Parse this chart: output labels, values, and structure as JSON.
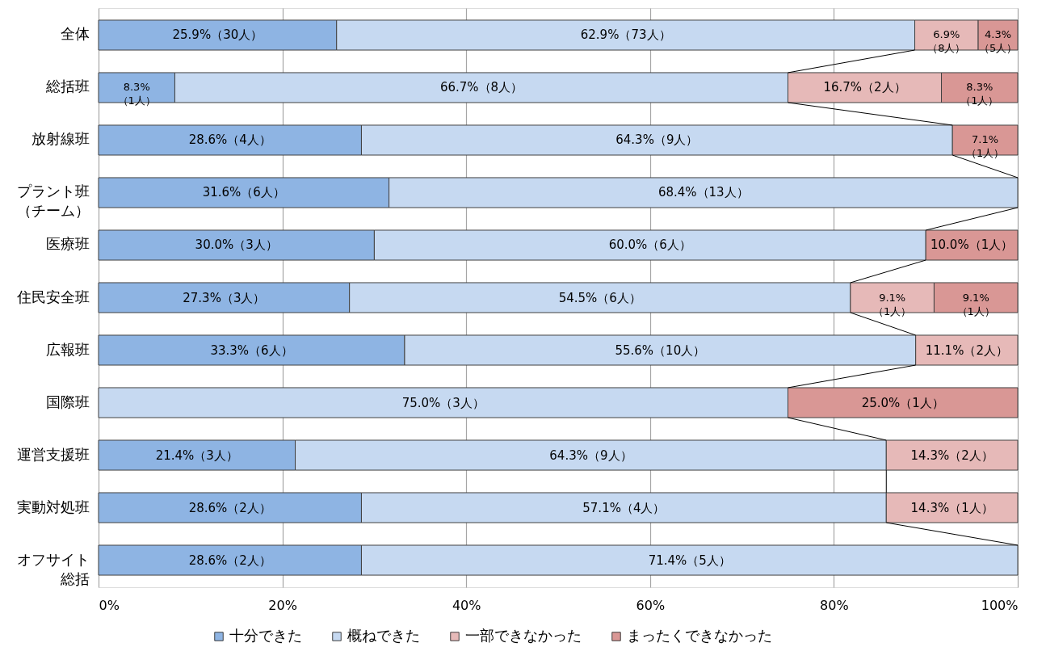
{
  "chart_data": {
    "type": "bar",
    "orientation": "horizontal",
    "stacked": true,
    "categories": [
      "全体",
      "総括班",
      "放射線班",
      "プラント班（チーム）",
      "医療班",
      "住民安全班",
      "広報班",
      "国際班",
      "運営支援班",
      "実動対処班",
      "オフサイト総括"
    ],
    "series": [
      {
        "name": "十分できた",
        "color": "#8eb4e3",
        "values": [
          25.9,
          8.3,
          28.6,
          31.6,
          30.0,
          27.3,
          33.3,
          null,
          21.4,
          28.6,
          28.6
        ],
        "value_labels": [
          "25.9%（30人）",
          "8.3%\n（1人）",
          "28.6%（4人）",
          "31.6%（6人）",
          "30.0%（3人）",
          "27.3%（3人）",
          "33.3%（6人）",
          null,
          "21.4%（3人）",
          "28.6%（2人）",
          "28.6%（2人）"
        ]
      },
      {
        "name": "概ねできた",
        "color": "#c6d9f1",
        "values": [
          62.9,
          66.7,
          64.3,
          68.4,
          60.0,
          54.5,
          55.6,
          75.0,
          64.3,
          57.1,
          71.4
        ],
        "value_labels": [
          "62.9%（73人）",
          "66.7%（8人）",
          "64.3%（9人）",
          "68.4%（13人）",
          "60.0%（6人）",
          "54.5%（6人）",
          "55.6%（10人）",
          "75.0%（3人）",
          "64.3%（9人）",
          "57.1%（4人）",
          "71.4%（5人）"
        ]
      },
      {
        "name": "一部できなかった",
        "color": "#e6b9b8",
        "values": [
          6.9,
          16.7,
          null,
          null,
          null,
          9.1,
          11.1,
          null,
          14.3,
          14.3,
          null
        ],
        "value_labels": [
          "6.9%\n（8人）",
          "16.7%（2人）",
          null,
          null,
          null,
          "9.1%\n（1人）",
          "11.1%（2人）",
          null,
          "14.3%（2人）",
          "14.3%（1人）",
          null
        ]
      },
      {
        "name": "まったくできなかった",
        "color": "#d99795",
        "values": [
          4.3,
          8.3,
          7.1,
          null,
          10.0,
          9.1,
          null,
          25.0,
          null,
          null,
          null
        ],
        "value_labels": [
          "4.3%\n（5人）",
          "8.3%\n（1人）",
          "7.1%\n（1人）",
          null,
          "10.0%（1人）",
          "9.1%\n（1人）",
          null,
          "25.0%（1人）",
          null,
          null,
          null
        ]
      }
    ],
    "xlim": [
      0,
      100
    ],
    "xticks": [
      {
        "value": 0,
        "label": "0%"
      },
      {
        "value": 20,
        "label": "20%"
      },
      {
        "value": 40,
        "label": "40%"
      },
      {
        "value": 60,
        "label": "60%"
      },
      {
        "value": 80,
        "label": "80%"
      },
      {
        "value": 100,
        "label": "100%"
      }
    ],
    "grid": "x",
    "legend": "bottom"
  }
}
